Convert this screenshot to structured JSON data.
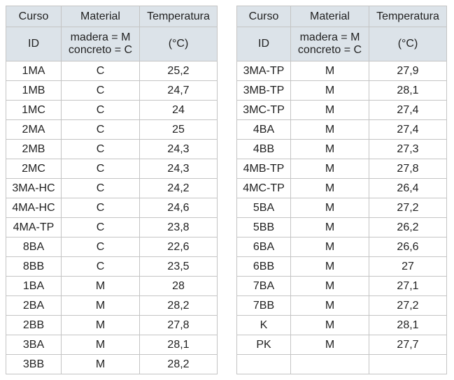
{
  "tables": [
    {
      "header": [
        [
          "Curso",
          "Material",
          "Temperatura"
        ],
        [
          "ID",
          [
            "madera = M",
            "concreto = C"
          ],
          "(°C)"
        ]
      ],
      "rows": [
        [
          "1MA",
          "C",
          "25,2"
        ],
        [
          "1MB",
          "C",
          "24,7"
        ],
        [
          "1MC",
          "C",
          "24"
        ],
        [
          "2MA",
          "C",
          "25"
        ],
        [
          "2MB",
          "C",
          "24,3"
        ],
        [
          "2MC",
          "C",
          "24,3"
        ],
        [
          "3MA-HC",
          "C",
          "24,2"
        ],
        [
          "4MA-HC",
          "C",
          "24,6"
        ],
        [
          "4MA-TP",
          "C",
          "23,8"
        ],
        [
          "8BA",
          "C",
          "22,6"
        ],
        [
          "8BB",
          "C",
          "23,5"
        ],
        [
          "1BA",
          "M",
          "28"
        ],
        [
          "2BA",
          "M",
          "28,2"
        ],
        [
          "2BB",
          "M",
          "27,8"
        ],
        [
          "3BA",
          "M",
          "28,1"
        ],
        [
          "3BB",
          "M",
          "28,2"
        ]
      ]
    },
    {
      "header": [
        [
          "Curso",
          "Material",
          "Temperatura"
        ],
        [
          "ID",
          [
            "madera = M",
            "concreto = C"
          ],
          "(°C)"
        ]
      ],
      "rows": [
        [
          "3MA-TP",
          "M",
          "27,9"
        ],
        [
          "3MB-TP",
          "M",
          "28,1"
        ],
        [
          "3MC-TP",
          "M",
          "27,4"
        ],
        [
          "4BA",
          "M",
          "27,4"
        ],
        [
          "4BB",
          "M",
          "27,3"
        ],
        [
          "4MB-TP",
          "M",
          "27,8"
        ],
        [
          "4MC-TP",
          "M",
          "26,4"
        ],
        [
          "5BA",
          "M",
          "27,2"
        ],
        [
          "5BB",
          "M",
          "26,2"
        ],
        [
          "6BA",
          "M",
          "26,6"
        ],
        [
          "6BB",
          "M",
          "27"
        ],
        [
          "7BA",
          "M",
          "27,1"
        ],
        [
          "7BB",
          "M",
          "27,2"
        ],
        [
          "K",
          "M",
          "28,1"
        ],
        [
          "PK",
          "M",
          "27,7"
        ]
      ]
    }
  ]
}
